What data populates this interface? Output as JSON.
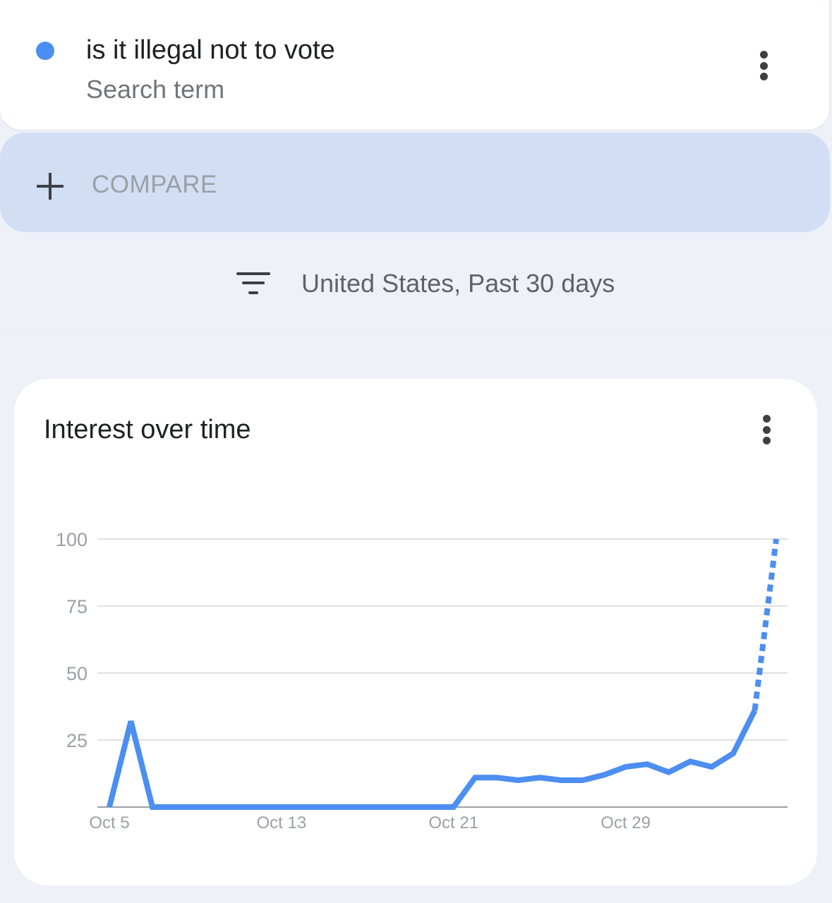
{
  "search_term": {
    "title": "is it illegal not to vote",
    "subtitle": "Search term",
    "dot_color": "#4c8ef1",
    "menu_icon": "more-vert-icon"
  },
  "compare": {
    "icon": "plus-icon",
    "label": "COMPARE"
  },
  "filter": {
    "icon": "filter-icon",
    "label": "United States, Past 30 days"
  },
  "chart_card": {
    "title": "Interest over time",
    "menu_icon": "more-vert-icon"
  },
  "chart_data": {
    "type": "line",
    "title": "Interest over time",
    "xlabel": "",
    "ylabel": "",
    "ylim": [
      0,
      100
    ],
    "y_ticks": [
      "25",
      "50",
      "75",
      "100"
    ],
    "x_ticks": [
      "Oct 5",
      "Oct 13",
      "Oct 21",
      "Oct 29"
    ],
    "grid": true,
    "series": [
      {
        "color": "#4c8ef1",
        "x": [
          "Oct 5",
          "Oct 6",
          "Oct 7",
          "Oct 8",
          "Oct 9",
          "Oct 10",
          "Oct 11",
          "Oct 12",
          "Oct 13",
          "Oct 14",
          "Oct 15",
          "Oct 16",
          "Oct 17",
          "Oct 18",
          "Oct 19",
          "Oct 20",
          "Oct 21",
          "Oct 22",
          "Oct 23",
          "Oct 24",
          "Oct 25",
          "Oct 26",
          "Oct 27",
          "Oct 28",
          "Oct 29",
          "Oct 30",
          "Oct 31",
          "Nov 1",
          "Nov 2",
          "Nov 3",
          "Nov 4",
          "Nov 5"
        ],
        "values": [
          0,
          32,
          0,
          0,
          0,
          0,
          0,
          0,
          0,
          0,
          0,
          0,
          0,
          0,
          0,
          0,
          0,
          11,
          11,
          10,
          11,
          10,
          10,
          12,
          15,
          16,
          13,
          17,
          15,
          20,
          36,
          100
        ],
        "partial_from_index": 30
      }
    ]
  }
}
